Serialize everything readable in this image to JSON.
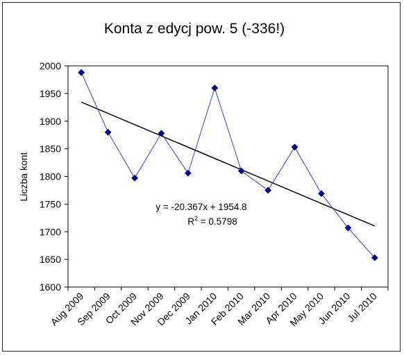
{
  "chart_data": {
    "type": "line",
    "title": "Konta z edycj pow. 5 (-336!)",
    "xlabel": "",
    "ylabel": "Liczba kont",
    "categories": [
      "Aug 2009",
      "Sep 2009",
      "Oct 2009",
      "Nov 2009",
      "Dec 2009",
      "Jan 2010",
      "Feb 2010",
      "Mar 2010",
      "Apr 2010",
      "May 2010",
      "Jun 2010",
      "Jul 2010"
    ],
    "series": [
      {
        "values": [
          1988,
          1880,
          1797,
          1878,
          1806,
          1960,
          1810,
          1775,
          1853,
          1769,
          1707,
          1653
        ],
        "color": "#000080",
        "marker": "diamond"
      }
    ],
    "trendline": {
      "type": "linear",
      "slope": -20.367,
      "intercept": 1954.8,
      "r2": 0.5798,
      "color": "#000000",
      "equation_label": "y = -20.367x + 1954.8",
      "r2_label_prefix": "R",
      "r2_label_sup": "2",
      "r2_label_value": " = 0.5798"
    },
    "ylim": [
      1600,
      2000
    ],
    "yticks": [
      1600,
      1650,
      1700,
      1750,
      1800,
      1850,
      1900,
      1950,
      2000
    ],
    "grid": false,
    "legend": "none"
  }
}
